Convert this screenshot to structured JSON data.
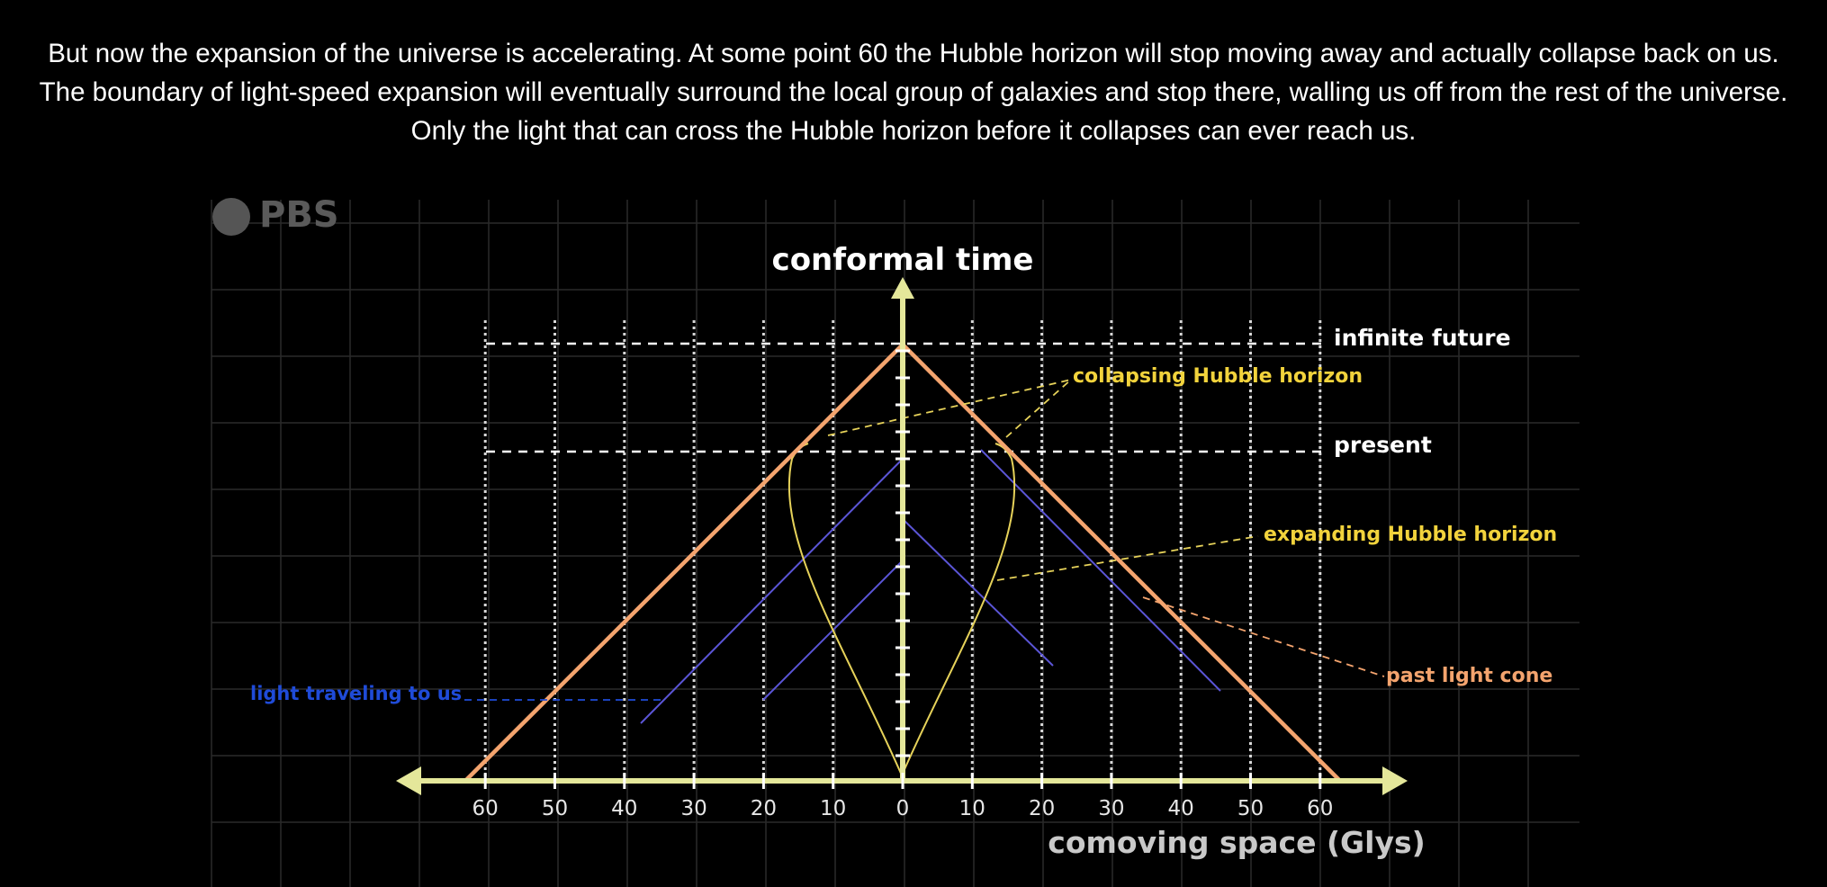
{
  "caption": "But now the expansion of the universe is accelerating. At some point 60 the Hubble horizon will stop moving away and actually collapse back on us. The boundary of light-speed expansion will eventually surround the local group of galaxies and stop there, walling us off from the rest of the universe. Only the light that can cross the Hubble horizon before it collapses can ever reach us.",
  "logo": "PBS",
  "axes": {
    "y_label": "conformal time",
    "x_label": "comoving space (Glys)",
    "x_ticks": [
      60,
      50,
      40,
      30,
      20,
      10,
      0,
      10,
      20,
      30,
      40,
      50,
      60
    ]
  },
  "labels": {
    "infinite_future": "infinite future",
    "present": "present",
    "collapsing_horizon": "collapsing Hubble horizon",
    "expanding_horizon": "expanding Hubble horizon",
    "past_light_cone": "past light cone",
    "light_traveling": "light traveling to us"
  },
  "colors": {
    "background": "#000000",
    "axis": "#e4e79a",
    "light_cone": "#f4a46e",
    "horizon": "#e6d25a",
    "light_rays": "#5b55d6",
    "light_label": "#1f4bd8",
    "yellow_label": "#f2d33c",
    "orange_label": "#f4a46e",
    "dashed": "#ffffff"
  }
}
